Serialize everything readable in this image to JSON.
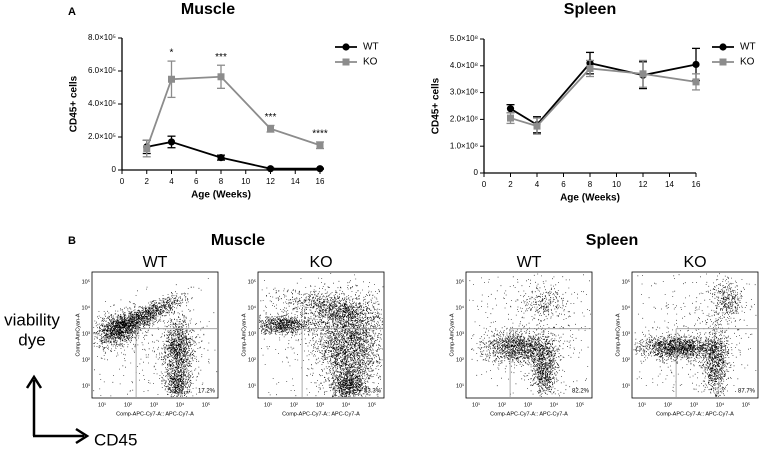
{
  "panel_a_label": "A",
  "chart_data": [
    {
      "type": "line",
      "title": "Muscle",
      "x_label": "Age (Weeks)",
      "y_label": "CD45+ cells",
      "x": [
        2,
        4,
        8,
        12,
        16
      ],
      "xlim": [
        0,
        16
      ],
      "xticks": [
        0,
        2,
        4,
        6,
        8,
        10,
        12,
        14,
        16
      ],
      "ylim": [
        0,
        800000
      ],
      "yticks": [
        0,
        {
          "value": 200000,
          "label": "2.0×10⁵"
        },
        {
          "value": 400000,
          "label": "4.0×10⁵"
        },
        {
          "value": 600000,
          "label": "6.0×10⁵"
        },
        {
          "value": 800000,
          "label": "8.0×10⁵"
        }
      ],
      "legend_position": "right",
      "series": [
        {
          "name": "WT",
          "color": "#000000",
          "marker": "circle",
          "values": [
            140000,
            170000,
            75000,
            8000,
            8000
          ],
          "errors": [
            40000,
            35000,
            15000,
            3000,
            3000
          ]
        },
        {
          "name": "KO",
          "color": "#8c8c8c",
          "marker": "square",
          "values": [
            130000,
            550000,
            565000,
            250000,
            150000
          ],
          "errors": [
            50000,
            110000,
            70000,
            20000,
            20000
          ]
        }
      ],
      "annotations": [
        null,
        "*",
        "***",
        "***",
        "****"
      ]
    },
    {
      "type": "line",
      "title": "Spleen",
      "x_label": "Age (Weeks)",
      "y_label": "CD45+ cells",
      "x": [
        2,
        4,
        8,
        12,
        16
      ],
      "xlim": [
        0,
        16
      ],
      "xticks": [
        0,
        2,
        4,
        6,
        8,
        10,
        12,
        14,
        16
      ],
      "ylim": [
        0,
        500000000
      ],
      "yticks": [
        0,
        {
          "value": 100000000,
          "label": "1.0×10⁸"
        },
        {
          "value": 200000000,
          "label": "2.0×10⁸"
        },
        {
          "value": 300000000,
          "label": "3.0×10⁸"
        },
        {
          "value": 400000000,
          "label": "4.0×10⁸"
        },
        {
          "value": 500000000,
          "label": "5.0×10⁸"
        }
      ],
      "legend_position": "right",
      "series": [
        {
          "name": "WT",
          "color": "#000000",
          "marker": "circle",
          "values": [
            240000000,
            180000000,
            410000000,
            365000000,
            405000000
          ],
          "errors": [
            15000000,
            30000000,
            40000000,
            50000000,
            60000000
          ]
        },
        {
          "name": "KO",
          "color": "#8c8c8c",
          "marker": "square",
          "values": [
            205000000,
            175000000,
            390000000,
            370000000,
            340000000
          ],
          "errors": [
            20000000,
            30000000,
            30000000,
            50000000,
            30000000
          ]
        }
      ]
    }
  ],
  "panel_b": {
    "label": "B",
    "groups": [
      {
        "title": "Muscle",
        "plots": [
          {
            "label": "WT",
            "percent": "17.2%"
          },
          {
            "label": "KO",
            "percent": "83.3%"
          }
        ]
      },
      {
        "title": "Spleen",
        "plots": [
          {
            "label": "WT",
            "percent": "82.2%"
          },
          {
            "label": "KO",
            "percent": "87.7%"
          }
        ]
      }
    ],
    "x_axis_label": "Comp-APC-Cy7-A:: APC-Cy7-A",
    "y_axis_label": "Comp-AmCyan-A",
    "axis_ticks": [
      "10¹",
      "10²",
      "10³",
      "10⁴",
      "10⁵"
    ],
    "y_arrow_label": [
      "viability",
      "dye"
    ],
    "x_arrow_label": "CD45"
  }
}
